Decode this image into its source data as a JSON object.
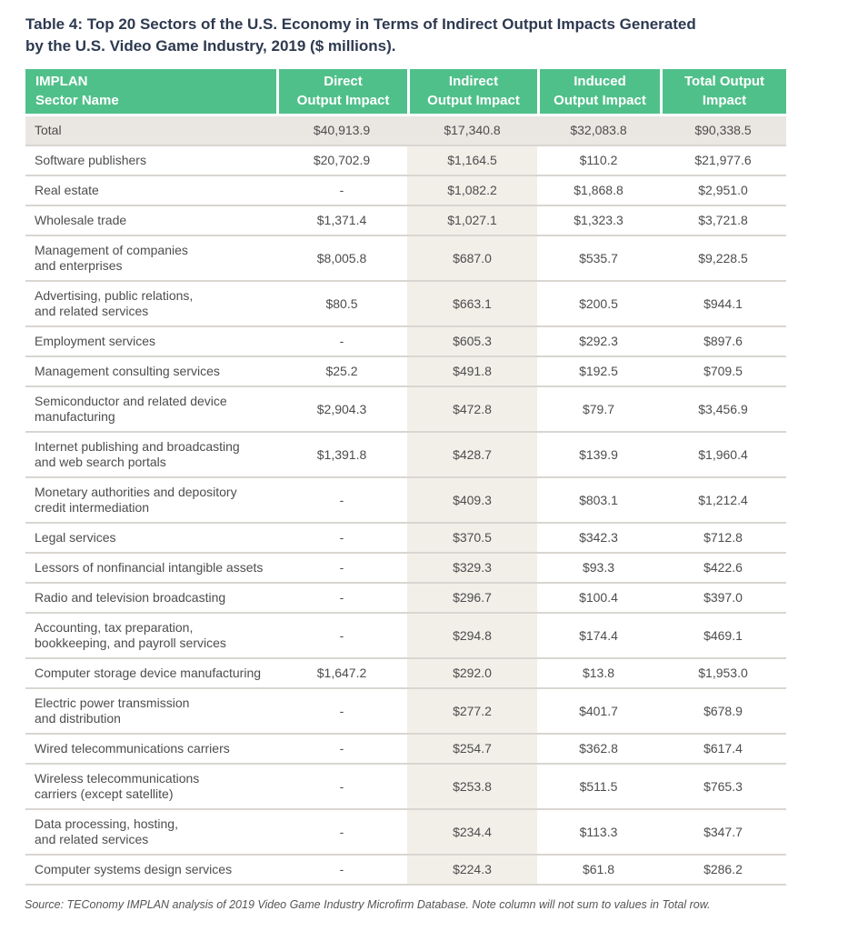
{
  "title": {
    "line1": "Table 4: Top 20 Sectors of the U.S. Economy in Terms of Indirect Output Impacts Generated",
    "line2": "by the U.S. Video Game Industry, 2019 ($ millions)."
  },
  "colors": {
    "header_green": "#50c08a",
    "total_row_gray": "#eae7e3",
    "indirect_column_beige": "#f2efe9",
    "row_divider": "#d9d6d2",
    "title_navy": "#2e3a50",
    "body_text": "#4d4d4d"
  },
  "table": {
    "headers": [
      "IMPLAN\nSector Name",
      "Direct\nOutput Impact",
      "Indirect\nOutput Impact",
      "Induced\nOutput Impact",
      "Total Output\nImpact"
    ],
    "rows": [
      {
        "name": "Total",
        "direct": "$40,913.9",
        "indirect": "$17,340.8",
        "induced": "$32,083.8",
        "total": "$90,338.5",
        "is_total": true
      },
      {
        "name": "Software publishers",
        "direct": "$20,702.9",
        "indirect": "$1,164.5",
        "induced": "$110.2",
        "total": "$21,977.6"
      },
      {
        "name": "Real estate",
        "direct": "-",
        "indirect": "$1,082.2",
        "induced": "$1,868.8",
        "total": "$2,951.0"
      },
      {
        "name": "Wholesale trade",
        "direct": "$1,371.4",
        "indirect": "$1,027.1",
        "induced": "$1,323.3",
        "total": "$3,721.8"
      },
      {
        "name": "Management of companies\nand enterprises",
        "direct": "$8,005.8",
        "indirect": "$687.0",
        "induced": "$535.7",
        "total": "$9,228.5"
      },
      {
        "name": "Advertising, public relations,\nand related services",
        "direct": "$80.5",
        "indirect": "$663.1",
        "induced": "$200.5",
        "total": "$944.1"
      },
      {
        "name": "Employment services",
        "direct": "-",
        "indirect": "$605.3",
        "induced": "$292.3",
        "total": "$897.6"
      },
      {
        "name": "Management consulting services",
        "direct": "$25.2",
        "indirect": "$491.8",
        "induced": "$192.5",
        "total": "$709.5"
      },
      {
        "name": "Semiconductor and related device\nmanufacturing",
        "direct": "$2,904.3",
        "indirect": "$472.8",
        "induced": "$79.7",
        "total": "$3,456.9"
      },
      {
        "name": "Internet publishing and broadcasting\nand web search portals",
        "direct": "$1,391.8",
        "indirect": "$428.7",
        "induced": "$139.9",
        "total": "$1,960.4"
      },
      {
        "name": "Monetary authorities and depository\ncredit intermediation",
        "direct": "-",
        "indirect": "$409.3",
        "induced": "$803.1",
        "total": "$1,212.4"
      },
      {
        "name": "Legal services",
        "direct": "-",
        "indirect": "$370.5",
        "induced": "$342.3",
        "total": "$712.8"
      },
      {
        "name": "Lessors of nonfinancial intangible assets",
        "direct": "-",
        "indirect": "$329.3",
        "induced": "$93.3",
        "total": "$422.6"
      },
      {
        "name": "Radio and television broadcasting",
        "direct": "-",
        "indirect": "$296.7",
        "induced": "$100.4",
        "total": "$397.0"
      },
      {
        "name": "Accounting, tax preparation,\nbookkeeping, and payroll services",
        "direct": "-",
        "indirect": "$294.8",
        "induced": "$174.4",
        "total": "$469.1"
      },
      {
        "name": "Computer storage device manufacturing",
        "direct": "$1,647.2",
        "indirect": "$292.0",
        "induced": "$13.8",
        "total": "$1,953.0"
      },
      {
        "name": "Electric power transmission\nand distribution",
        "direct": "-",
        "indirect": "$277.2",
        "induced": "$401.7",
        "total": "$678.9"
      },
      {
        "name": "Wired telecommunications carriers",
        "direct": "-",
        "indirect": "$254.7",
        "induced": "$362.8",
        "total": "$617.4"
      },
      {
        "name": "Wireless telecommunications\ncarriers (except satellite)",
        "direct": "-",
        "indirect": "$253.8",
        "induced": "$511.5",
        "total": "$765.3"
      },
      {
        "name": "Data processing, hosting,\nand related services",
        "direct": "-",
        "indirect": "$234.4",
        "induced": "$113.3",
        "total": "$347.7"
      },
      {
        "name": "Computer systems design services",
        "direct": "-",
        "indirect": "$224.3",
        "induced": "$61.8",
        "total": "$286.2"
      }
    ]
  },
  "footer": {
    "source": "Source: TEConomy IMPLAN analysis of 2019 Video Game Industry Microfirm Database. Note column will not sum to values in Total row."
  }
}
